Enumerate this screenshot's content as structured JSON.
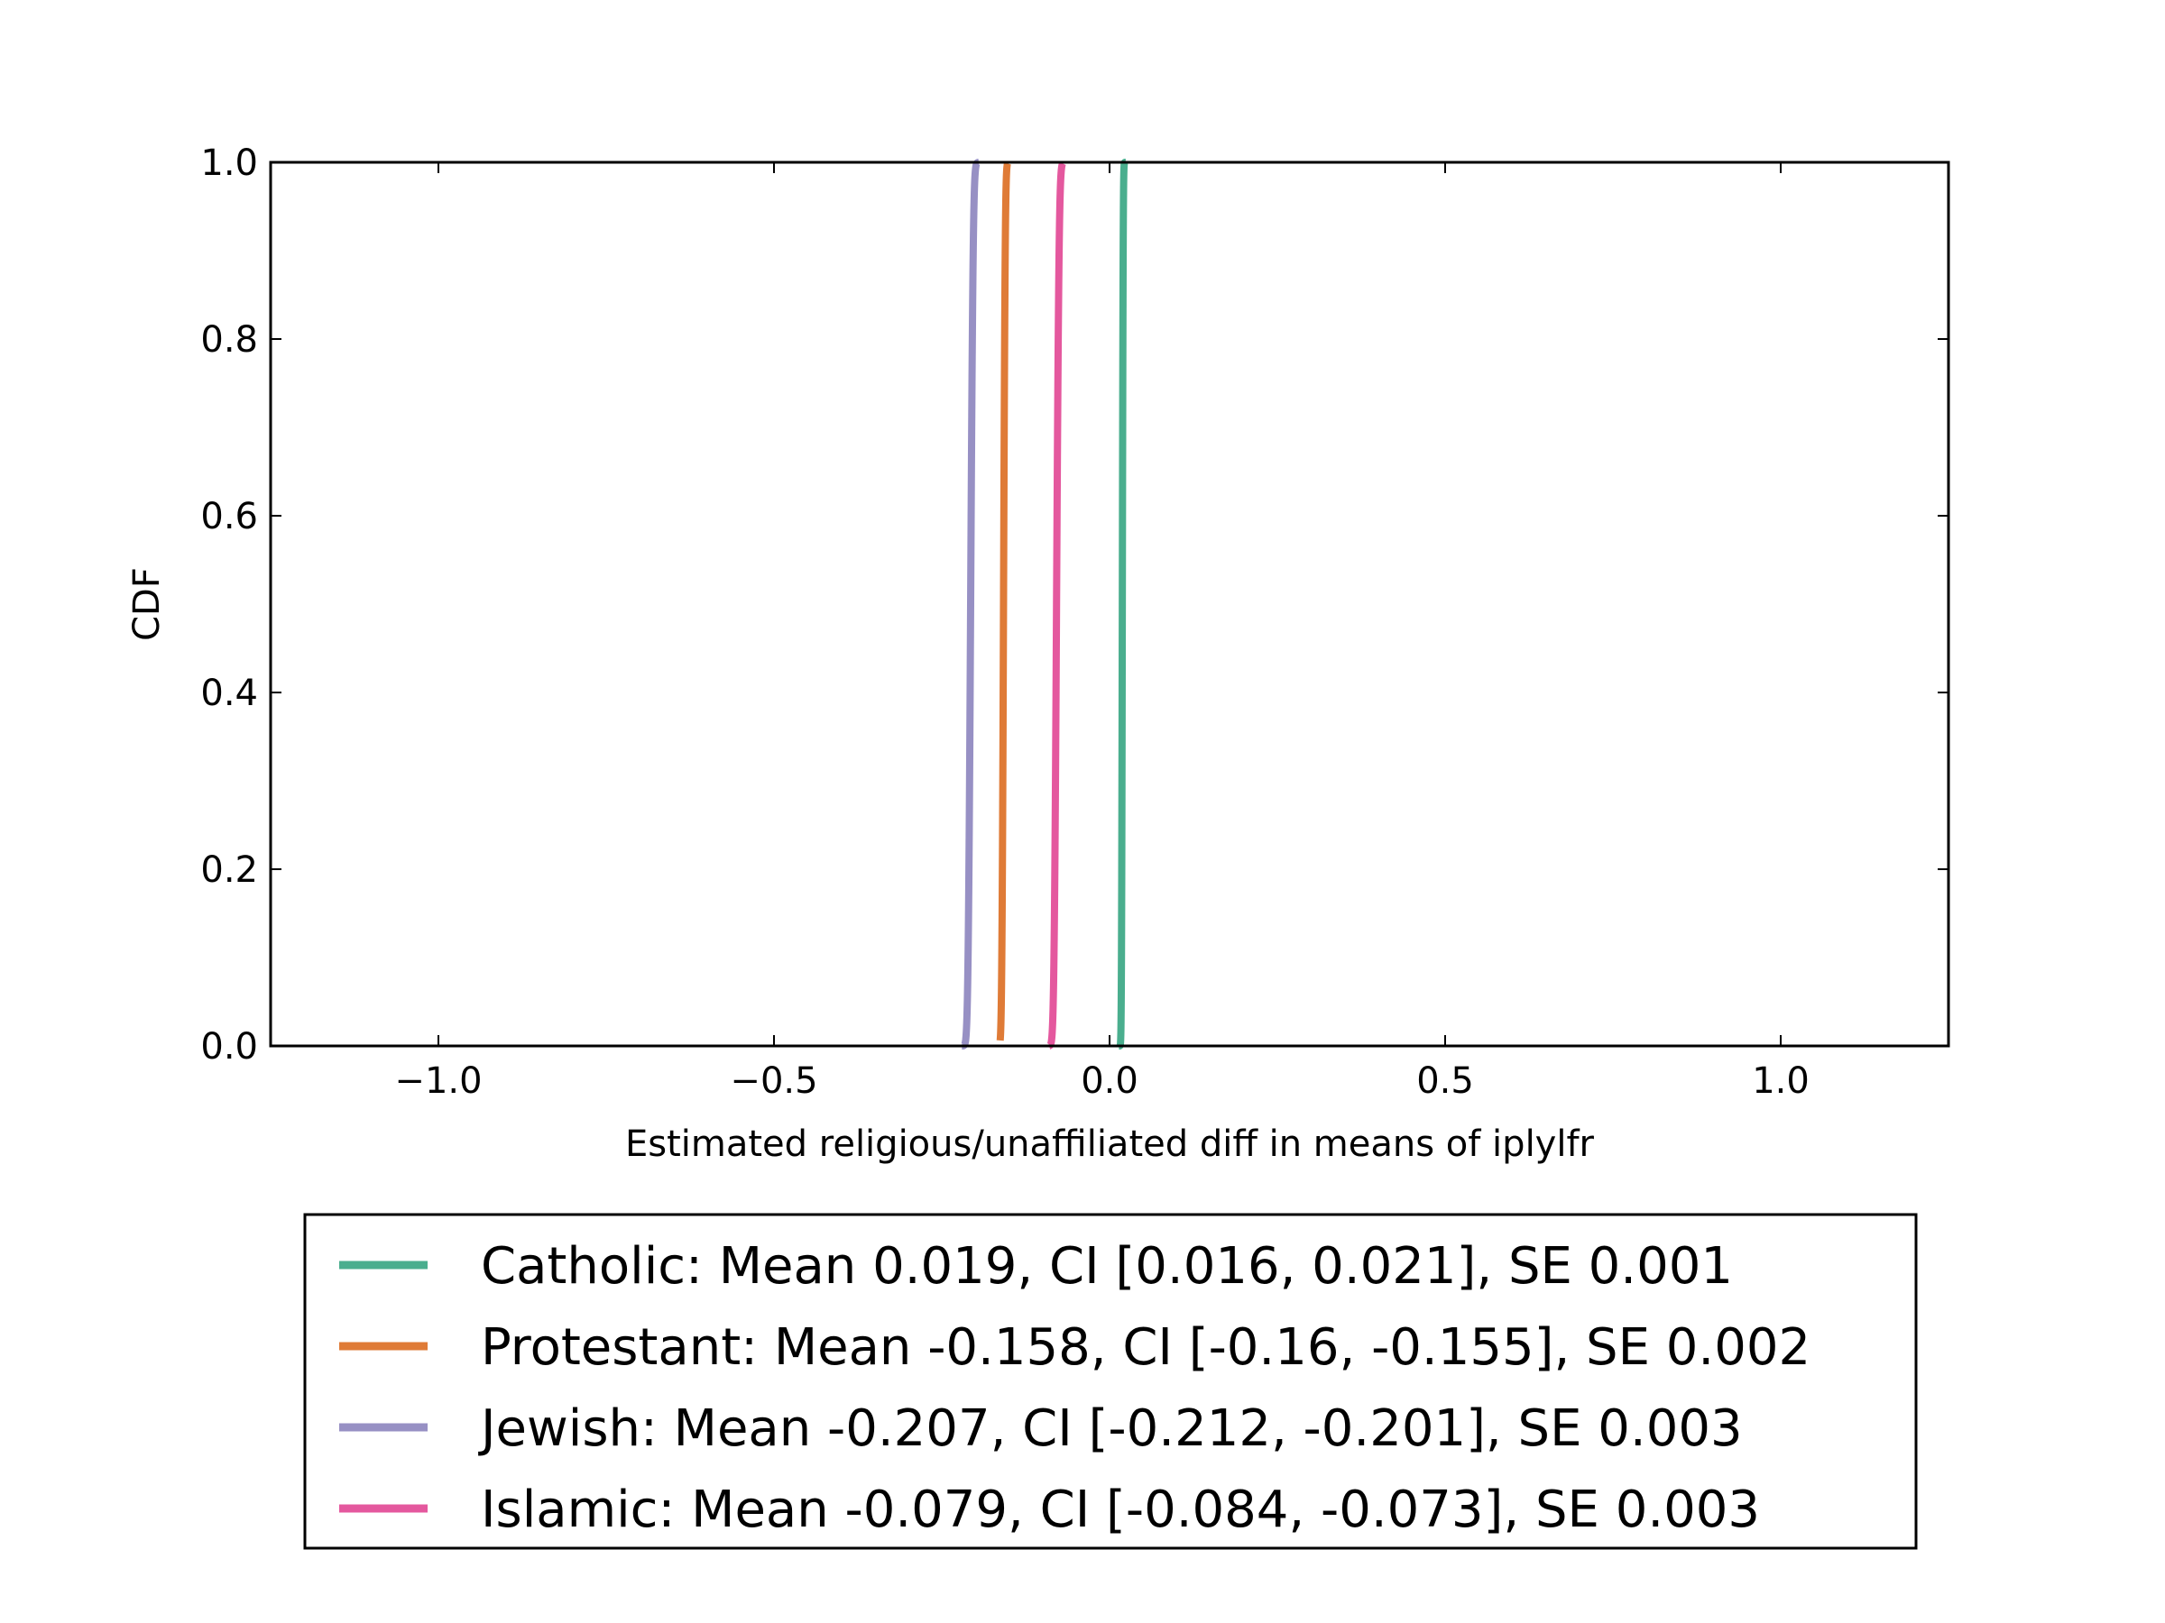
{
  "chart_data": {
    "type": "line",
    "xlabel": "Estimated religious/unaffiliated diff in means of iplylfr",
    "ylabel": "CDF",
    "xlim": [
      -1.25,
      1.25
    ],
    "ylim": [
      0.0,
      1.0
    ],
    "xticks": [
      -1.0,
      -0.5,
      0.0,
      0.5,
      1.0
    ],
    "xtick_labels": [
      "−1.0",
      "−0.5",
      "0.0",
      "0.5",
      "1.0"
    ],
    "yticks": [
      0.0,
      0.2,
      0.4,
      0.6,
      0.8,
      1.0
    ],
    "ytick_labels": [
      "0.0",
      "0.2",
      "0.4",
      "0.6",
      "0.8",
      "1.0"
    ],
    "grid": false,
    "legend_position": "below",
    "series": [
      {
        "name": "Catholic",
        "label": "Catholic: Mean 0.019, CI [0.016, 0.021], SE 0.001",
        "color": "#4aae8e",
        "mean": 0.019,
        "ci": [
          0.016,
          0.021
        ],
        "se": 0.001,
        "x_min": 0.014,
        "x_max": 0.024
      },
      {
        "name": "Protestant",
        "label": "Protestant: Mean -0.158, CI [-0.16, -0.155], SE 0.002",
        "color": "#df7b37",
        "mean": -0.158,
        "ci": [
          -0.16,
          -0.155
        ],
        "se": 0.002,
        "x_min": -0.163,
        "x_max": -0.152
      },
      {
        "name": "Jewish",
        "label": "Jewish: Mean -0.207, CI [-0.212, -0.201], SE 0.003",
        "color": "#9790c4",
        "mean": -0.207,
        "ci": [
          -0.212,
          -0.201
        ],
        "se": 0.003,
        "x_min": -0.22,
        "x_max": -0.195
      },
      {
        "name": "Islamic",
        "label": "Islamic: Mean -0.079, CI [-0.084, -0.073], SE 0.003",
        "color": "#e4589e",
        "mean": -0.079,
        "ci": [
          -0.084,
          -0.073
        ],
        "se": 0.003,
        "x_min": -0.09,
        "x_max": -0.07
      }
    ]
  }
}
